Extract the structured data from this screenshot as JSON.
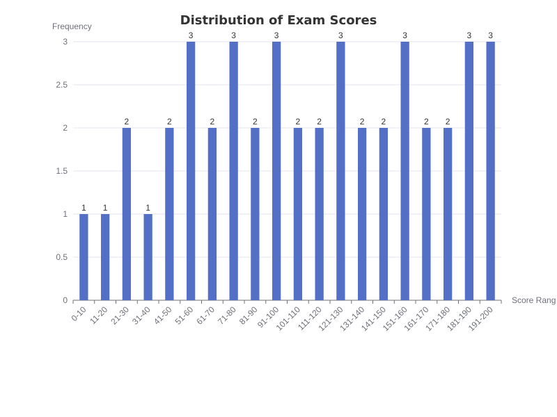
{
  "chart_data": {
    "type": "bar",
    "title": "Distribution of Exam Scores",
    "xlabel": "Score Rang",
    "ylabel": "Frequency",
    "categories": [
      "0-10",
      "11-20",
      "21-30",
      "31-40",
      "41-50",
      "51-60",
      "61-70",
      "71-80",
      "81-90",
      "91-100",
      "101-110",
      "111-120",
      "121-130",
      "131-140",
      "141-150",
      "151-160",
      "161-170",
      "171-180",
      "181-190",
      "191-200"
    ],
    "values": [
      1,
      1,
      2,
      1,
      2,
      3,
      2,
      3,
      2,
      3,
      2,
      2,
      3,
      2,
      2,
      3,
      2,
      2,
      3,
      3
    ],
    "ylim": [
      0,
      3
    ],
    "yticks": [
      0,
      0.5,
      1,
      1.5,
      2,
      2.5,
      3
    ],
    "grid": true,
    "data_labels": true,
    "bar_color": "#5470c6",
    "axis_color": "#6e7079",
    "grid_color": "#e0e6f1",
    "label_color": "#333333"
  }
}
